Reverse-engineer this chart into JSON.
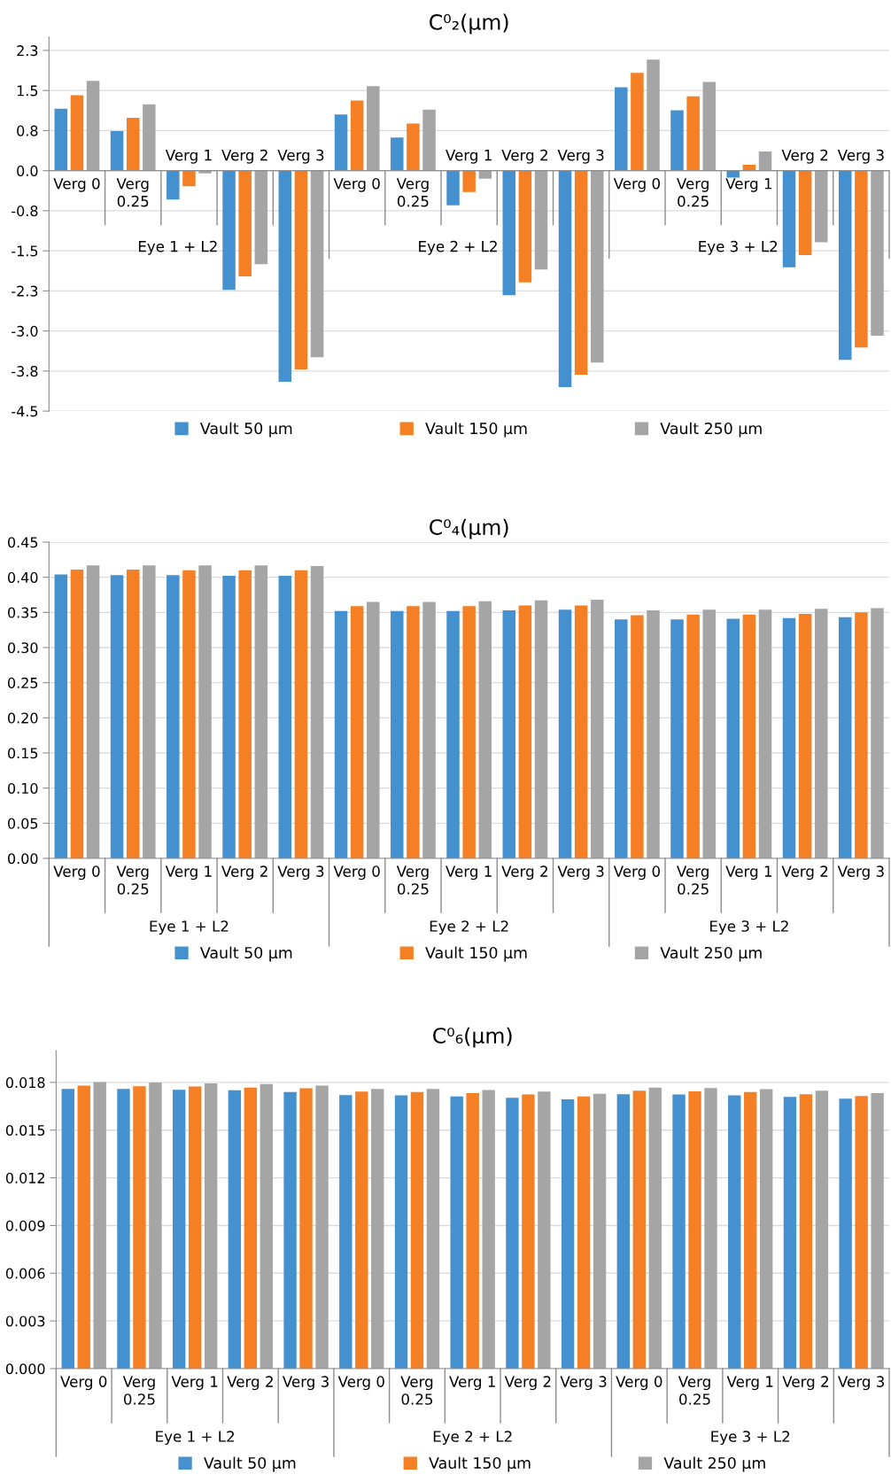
{
  "chart_data": [
    {
      "type": "bar",
      "title": "C⁰₂(μm)",
      "categories": [
        "Verg 0",
        "Verg 0.25",
        "Verg 1",
        "Verg 2",
        "Verg 3",
        "Verg 0",
        "Verg 0.25",
        "Verg 1",
        "Verg 2",
        "Verg 3",
        "Verg 0",
        "Verg 0.25",
        "Verg 1",
        "Verg 2",
        "Verg 3"
      ],
      "series": [
        {
          "name": "Vault 50 μm",
          "color": "#4590ce",
          "values": [
            1.16,
            0.74,
            -0.54,
            -2.23,
            -3.95,
            1.05,
            0.62,
            -0.65,
            -2.33,
            -4.05,
            1.56,
            1.13,
            -0.13,
            -1.81,
            -3.54
          ]
        },
        {
          "name": "Vault 150 μm",
          "color": "#f47f24",
          "values": [
            1.41,
            0.99,
            -0.29,
            -1.98,
            -3.72,
            1.31,
            0.88,
            -0.4,
            -2.09,
            -3.82,
            1.83,
            1.39,
            0.11,
            -1.58,
            -3.31
          ]
        },
        {
          "name": "Vault 250 μm",
          "color": "#a5a5a5",
          "values": [
            1.68,
            1.24,
            -0.05,
            -1.75,
            -3.49,
            1.58,
            1.14,
            -0.15,
            -1.85,
            -3.59,
            2.08,
            1.66,
            0.36,
            -1.34,
            -3.09
          ]
        }
      ],
      "ylim": [
        -4.5,
        2.5
      ],
      "yticks": [
        {
          "value": -4.5,
          "label": "-4.5"
        },
        {
          "value": -3.75,
          "label": "-3.8"
        },
        {
          "value": -3.0,
          "label": "-3.0"
        },
        {
          "value": -2.25,
          "label": "-2.3"
        },
        {
          "value": -1.5,
          "label": "-1.5"
        },
        {
          "value": -0.75,
          "label": "-0.8"
        },
        {
          "value": 0,
          "label": "0.0"
        },
        {
          "value": 0.75,
          "label": "0.8"
        },
        {
          "value": 1.5,
          "label": "1.5"
        },
        {
          "value": 2.25,
          "label": "2.3"
        }
      ],
      "grid": "y",
      "legend": "bottom",
      "annotations": [
        "Eye 1 + L2",
        "Eye 2 + L2",
        "Eye 3 + L2"
      ]
    },
    {
      "type": "bar",
      "title": "C⁰₄(μm)",
      "categories": [
        "Verg 0",
        "Verg 0.25",
        "Verg 1",
        "Verg 2",
        "Verg 3",
        "Verg 0",
        "Verg 0.25",
        "Verg 1",
        "Verg 2",
        "Verg 3",
        "Verg 0",
        "Verg 0.25",
        "Verg 1",
        "Verg 2",
        "Verg 3"
      ],
      "series": [
        {
          "name": "Vault 50 μm",
          "color": "#4590ce",
          "values": [
            0.404,
            0.403,
            0.403,
            0.402,
            0.402,
            0.352,
            0.352,
            0.352,
            0.353,
            0.354,
            0.34,
            0.34,
            0.341,
            0.342,
            0.343
          ]
        },
        {
          "name": "Vault 150 μm",
          "color": "#f47f24",
          "values": [
            0.411,
            0.411,
            0.41,
            0.41,
            0.41,
            0.359,
            0.359,
            0.359,
            0.36,
            0.36,
            0.346,
            0.347,
            0.347,
            0.348,
            0.35
          ]
        },
        {
          "name": "Vault 250 μm",
          "color": "#a5a5a5",
          "values": [
            0.417,
            0.417,
            0.417,
            0.417,
            0.416,
            0.365,
            0.365,
            0.366,
            0.367,
            0.368,
            0.353,
            0.354,
            0.354,
            0.355,
            0.356
          ]
        }
      ],
      "ylim": [
        0,
        0.45
      ],
      "yticks": [
        {
          "value": 0,
          "label": "0.00"
        },
        {
          "value": 0.05,
          "label": "0.05"
        },
        {
          "value": 0.1,
          "label": "0.10"
        },
        {
          "value": 0.15,
          "label": "0.15"
        },
        {
          "value": 0.2,
          "label": "0.20"
        },
        {
          "value": 0.25,
          "label": "0.25"
        },
        {
          "value": 0.3,
          "label": "0.30"
        },
        {
          "value": 0.35,
          "label": "0.35"
        },
        {
          "value": 0.4,
          "label": "0.40"
        },
        {
          "value": 0.45,
          "label": "0.45"
        }
      ],
      "grid": "y",
      "legend": "bottom",
      "annotations": [
        "Eye 1 + L2",
        "Eye 2 + L2",
        "Eye 3 + L2"
      ]
    },
    {
      "type": "bar",
      "title": "C⁰₆(μm)",
      "categories": [
        "Verg 0",
        "Verg 0.25",
        "Verg 1",
        "Verg 2",
        "Verg 3",
        "Verg 0",
        "Verg 0.25",
        "Verg 1",
        "Verg 2",
        "Verg 3",
        "Verg 0",
        "Verg 0.25",
        "Verg 1",
        "Verg 2",
        "Verg 3"
      ],
      "series": [
        {
          "name": "Vault 50 μm",
          "color": "#4590ce",
          "values": [
            0.01759,
            0.01759,
            0.01753,
            0.0175,
            0.0174,
            0.0172,
            0.01718,
            0.01712,
            0.01703,
            0.01694,
            0.01725,
            0.01724,
            0.01718,
            0.01709,
            0.01698
          ]
        },
        {
          "name": "Vault 150 μm",
          "color": "#f47f24",
          "values": [
            0.0178,
            0.01776,
            0.01774,
            0.01768,
            0.01763,
            0.01742,
            0.0174,
            0.01733,
            0.01724,
            0.01712,
            0.01748,
            0.01744,
            0.01739,
            0.01725,
            0.01714
          ]
        },
        {
          "name": "Vault 250 μm",
          "color": "#a5a5a5",
          "values": [
            0.01802,
            0.018,
            0.01794,
            0.01789,
            0.0178,
            0.01759,
            0.01759,
            0.01752,
            0.01742,
            0.01729,
            0.01768,
            0.01765,
            0.01757,
            0.01748,
            0.01733
          ]
        }
      ],
      "ylim": [
        0,
        0.02
      ],
      "yticks": [
        {
          "value": 0,
          "label": "0.000"
        },
        {
          "value": 0.003,
          "label": "0.003"
        },
        {
          "value": 0.006,
          "label": "0.006"
        },
        {
          "value": 0.009,
          "label": "0.009"
        },
        {
          "value": 0.012,
          "label": "0.012"
        },
        {
          "value": 0.015,
          "label": "0.015"
        },
        {
          "value": 0.018,
          "label": "0.018"
        }
      ],
      "grid": "y",
      "legend": "bottom",
      "annotations": [
        "Eye 1 + L2",
        "Eye 2 + L2",
        "Eye 3 + L2"
      ]
    }
  ]
}
